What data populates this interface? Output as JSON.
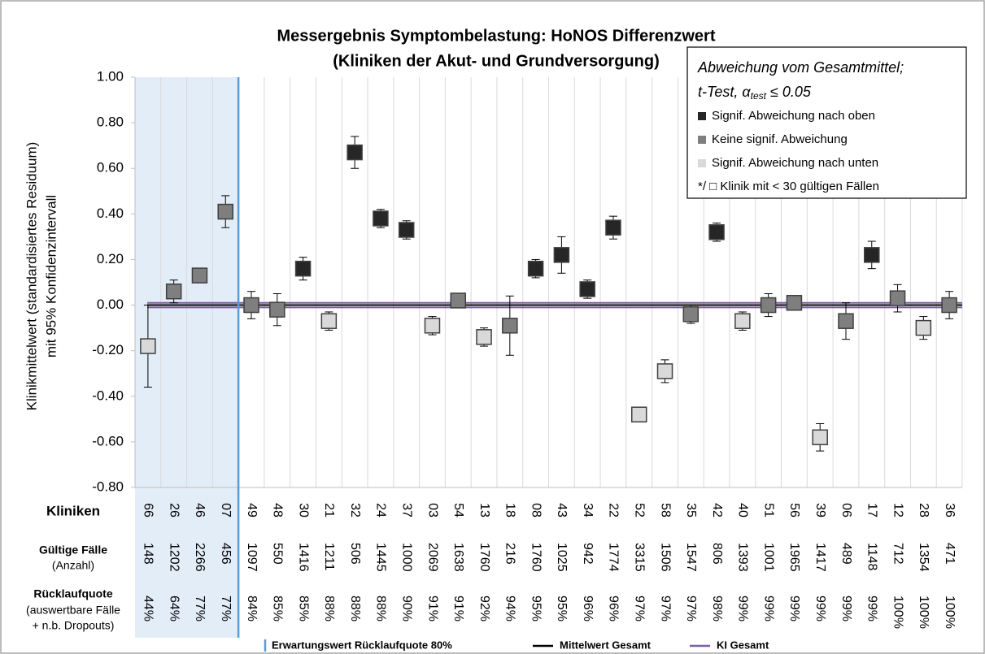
{
  "chart_data": {
    "type": "errorbar",
    "title": "Messergebnis Symptombelastung: HoNOS Differenzwert",
    "subtitle": "(Kliniken der Akut- und Grundversorgung)",
    "y_label": "Klinikmittelwert (standardisiertes Residuum)",
    "y_label_2": "mit 95% Konfidenzintervall",
    "ylim": [
      -0.8,
      1.0
    ],
    "yticks": [
      {
        "value": 1.0,
        "label": "1.00"
      },
      {
        "value": 0.8,
        "label": "0.80"
      },
      {
        "value": 0.6,
        "label": "0.60"
      },
      {
        "value": 0.4,
        "label": "0.40"
      },
      {
        "value": 0.2,
        "label": "0.20"
      },
      {
        "value": 0,
        "label": "0.00"
      },
      {
        "value": -0.2,
        "label": "-0.20"
      },
      {
        "value": -0.4,
        "label": "-0.40"
      },
      {
        "value": -0.6,
        "label": "-0.60"
      },
      {
        "value": -0.8,
        "label": "-0.80"
      }
    ],
    "row_label_categories": "Kliniken",
    "row_label_cases": "Gültige Fälle",
    "row_label_cases_sub": "(Anzahl)",
    "row_label_rates": "Rücklaufquote",
    "row_label_rates_sub": "(auswertbare Fälle",
    "row_label_rates_sub2": "+ n.b. Dropouts)",
    "categories": [
      "66",
      "26",
      "46",
      "07",
      "49",
      "48",
      "30",
      "21",
      "32",
      "24",
      "37",
      "03",
      "54",
      "13",
      "18",
      "08",
      "43",
      "34",
      "22",
      "52",
      "58",
      "35",
      "42",
      "40",
      "51",
      "56",
      "39",
      "06",
      "17",
      "12",
      "28",
      "36"
    ],
    "cases": [
      148,
      1202,
      2266,
      456,
      1097,
      550,
      1416,
      1211,
      506,
      1445,
      1000,
      2069,
      1638,
      1760,
      216,
      1760,
      1025,
      942,
      1774,
      3315,
      1506,
      1547,
      806,
      1393,
      1001,
      1965,
      1417,
      489,
      1148,
      712,
      1354,
      471
    ],
    "return_rates": [
      44,
      64,
      77,
      77,
      84,
      85,
      85,
      88,
      88,
      88,
      90,
      91,
      91,
      92,
      94,
      95,
      95,
      96,
      96,
      97,
      97,
      97,
      98,
      99,
      99,
      99,
      99,
      99,
      99,
      100,
      100,
      100
    ],
    "return_rate_labels": [
      "44%",
      "64%",
      "77%",
      "77%",
      "84%",
      "85%",
      "85%",
      "88%",
      "88%",
      "88%",
      "90%",
      "91%",
      "91%",
      "92%",
      "94%",
      "95%",
      "95%",
      "96%",
      "96%",
      "97%",
      "97%",
      "97%",
      "98%",
      "99%",
      "99%",
      "99%",
      "99%",
      "99%",
      "99%",
      "100%",
      "100%",
      "100%"
    ],
    "expected_return_rate": 80,
    "expected_return_rate_label": "Erwartungswert Rücklaufquote 80%",
    "expected_return_rate_color": "#5b9bd5",
    "shade_color": "#e3edf8",
    "overall_mean": 0,
    "overall_mean_label": "Mittelwert Gesamt",
    "overall_mean_color": "#000000",
    "overall_ci": [
      -0.01,
      0.01
    ],
    "overall_ci_label": "KI Gesamt",
    "overall_ci_color": "#7f5fa0",
    "legend_title": "Abweichung vom Gesamtmittel;",
    "legend_test": {
      "pre": "t-Test, α",
      "sub": "test",
      "post": " ≤ 0.05"
    },
    "legend_note": "*/ □ Klinik mit < 30 gültigen Fällen",
    "series": [
      {
        "name": "Signif. Abweichung nach oben",
        "color": "#262626",
        "values": [
          null,
          null,
          null,
          null,
          null,
          null,
          0.16,
          null,
          0.67,
          0.38,
          0.33,
          null,
          null,
          null,
          null,
          0.16,
          0.22,
          0.07,
          0.34,
          null,
          null,
          null,
          0.32,
          null,
          null,
          null,
          null,
          null,
          0.22,
          null,
          null,
          null
        ],
        "errors": [
          null,
          null,
          null,
          null,
          null,
          null,
          0.05,
          null,
          0.07,
          0.04,
          0.04,
          null,
          null,
          null,
          null,
          0.04,
          0.08,
          0.04,
          0.05,
          null,
          null,
          null,
          0.04,
          null,
          null,
          null,
          null,
          null,
          0.06,
          null,
          null,
          null
        ]
      },
      {
        "name": "Keine signif. Abweichung",
        "color": "#7f7f7f",
        "values": [
          null,
          0.06,
          0.13,
          0.41,
          0,
          -0.02,
          null,
          null,
          null,
          null,
          null,
          null,
          0.02,
          null,
          -0.09,
          null,
          null,
          null,
          null,
          null,
          null,
          -0.04,
          null,
          null,
          0,
          0.01,
          null,
          -0.07,
          null,
          0.03,
          null,
          0
        ],
        "errors": [
          null,
          0.05,
          0.03,
          0.07,
          0.06,
          0.07,
          null,
          null,
          null,
          null,
          null,
          null,
          0.03,
          null,
          0.13,
          null,
          null,
          null,
          null,
          null,
          null,
          0.04,
          null,
          null,
          0.05,
          0.03,
          null,
          0.08,
          null,
          0.06,
          null,
          0.06
        ]
      },
      {
        "name": "Signif. Abweichung nach unten",
        "color": "#d9d9d9",
        "values": [
          -0.18,
          null,
          null,
          null,
          null,
          null,
          null,
          -0.07,
          null,
          null,
          null,
          -0.09,
          null,
          -0.14,
          null,
          null,
          null,
          null,
          null,
          -0.48,
          -0.29,
          null,
          null,
          -0.07,
          null,
          null,
          -0.58,
          null,
          null,
          null,
          -0.1,
          null
        ],
        "errors": [
          0.18,
          null,
          null,
          null,
          null,
          null,
          null,
          0.04,
          null,
          null,
          null,
          0.04,
          null,
          0.04,
          null,
          null,
          null,
          null,
          null,
          0.03,
          0.05,
          null,
          null,
          0.04,
          null,
          null,
          0.06,
          null,
          null,
          null,
          0.05,
          null
        ]
      }
    ]
  }
}
